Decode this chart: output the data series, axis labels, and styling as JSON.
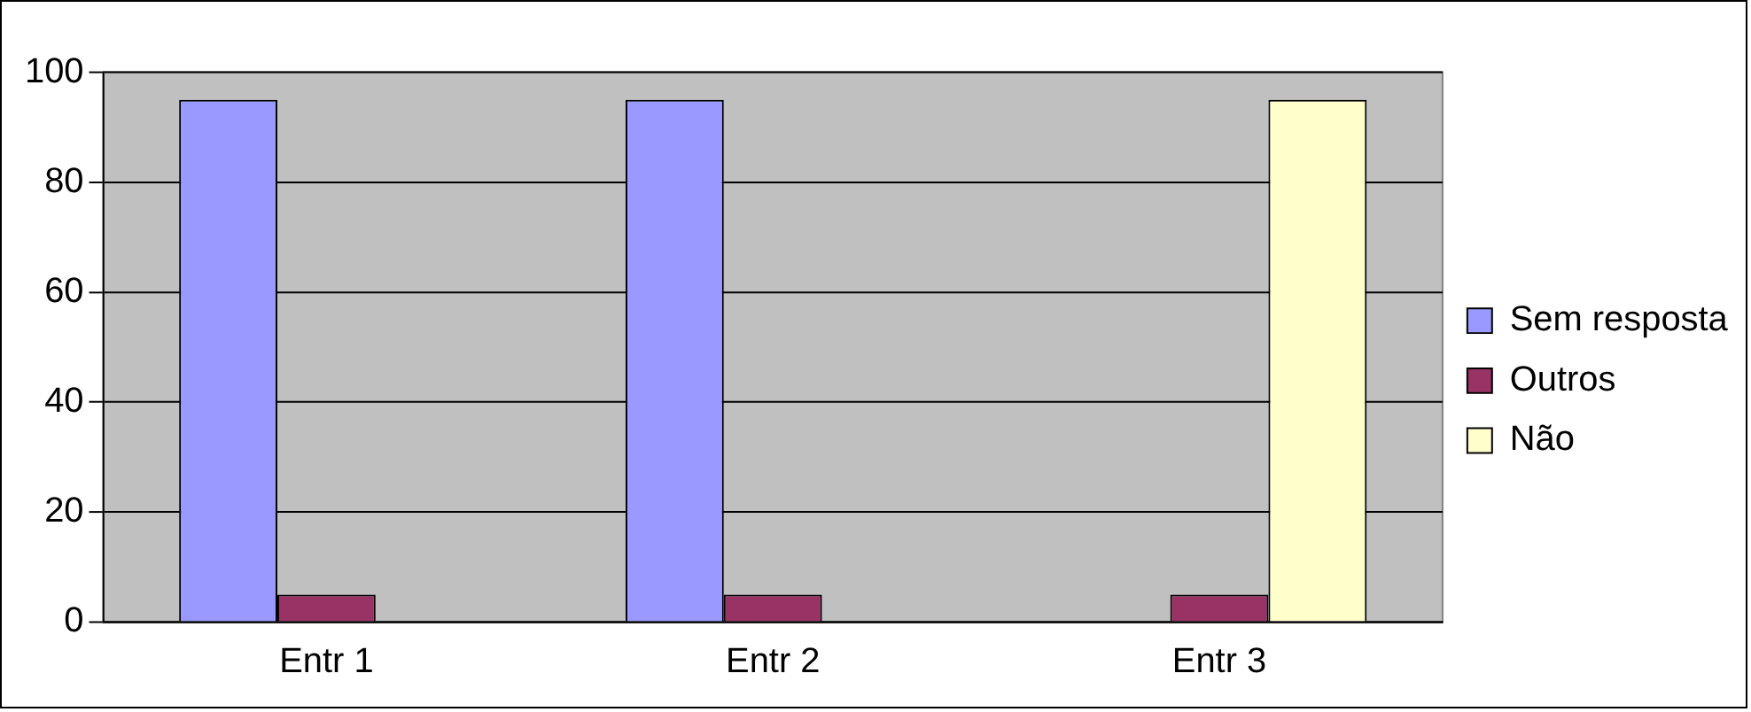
{
  "chart_data": {
    "type": "bar",
    "categories": [
      "Entr 1",
      "Entr 2",
      "Entr 3"
    ],
    "series": [
      {
        "name": "Sem resposta",
        "color": "#9999ff",
        "values": [
          95,
          95,
          0
        ]
      },
      {
        "name": "Outros",
        "color": "#993366",
        "values": [
          5,
          5,
          5
        ]
      },
      {
        "name": "Não",
        "color": "#ffffcc",
        "values": [
          0,
          0,
          95
        ]
      }
    ],
    "ylim": [
      0,
      100
    ],
    "yticks": [
      0,
      20,
      40,
      60,
      80,
      100
    ],
    "grid": "y",
    "legend": "right"
  }
}
